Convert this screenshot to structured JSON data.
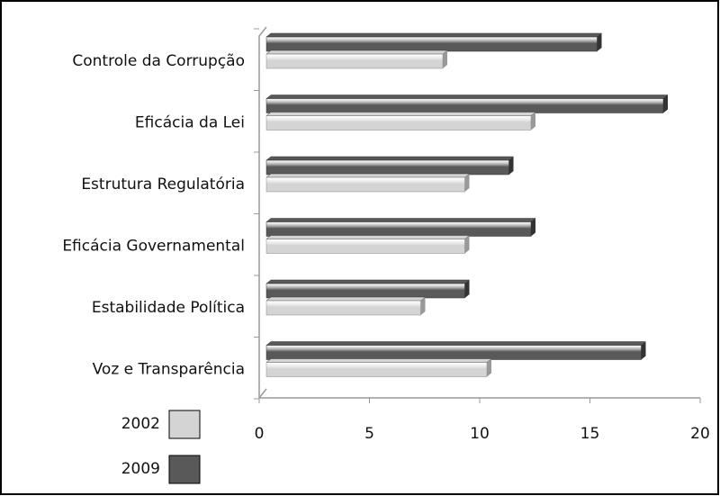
{
  "chart_data": {
    "type": "bar",
    "orientation": "horizontal",
    "categories": [
      "Controle da Corrupção",
      "Eficácia da Lei",
      "Estrutura Regulatória",
      "Eficácia Governamental",
      "Estabilidade Política",
      "Voz e Transparência"
    ],
    "series": [
      {
        "name": "2002",
        "color": "#d4d4d4",
        "values": [
          8,
          12,
          9,
          9,
          7,
          10
        ]
      },
      {
        "name": "2009",
        "color": "#595959",
        "values": [
          15,
          18,
          11,
          12,
          9,
          17
        ]
      }
    ],
    "xlim": [
      0,
      20
    ],
    "xticks": [
      0,
      5,
      10,
      15,
      20
    ],
    "grid": false
  }
}
